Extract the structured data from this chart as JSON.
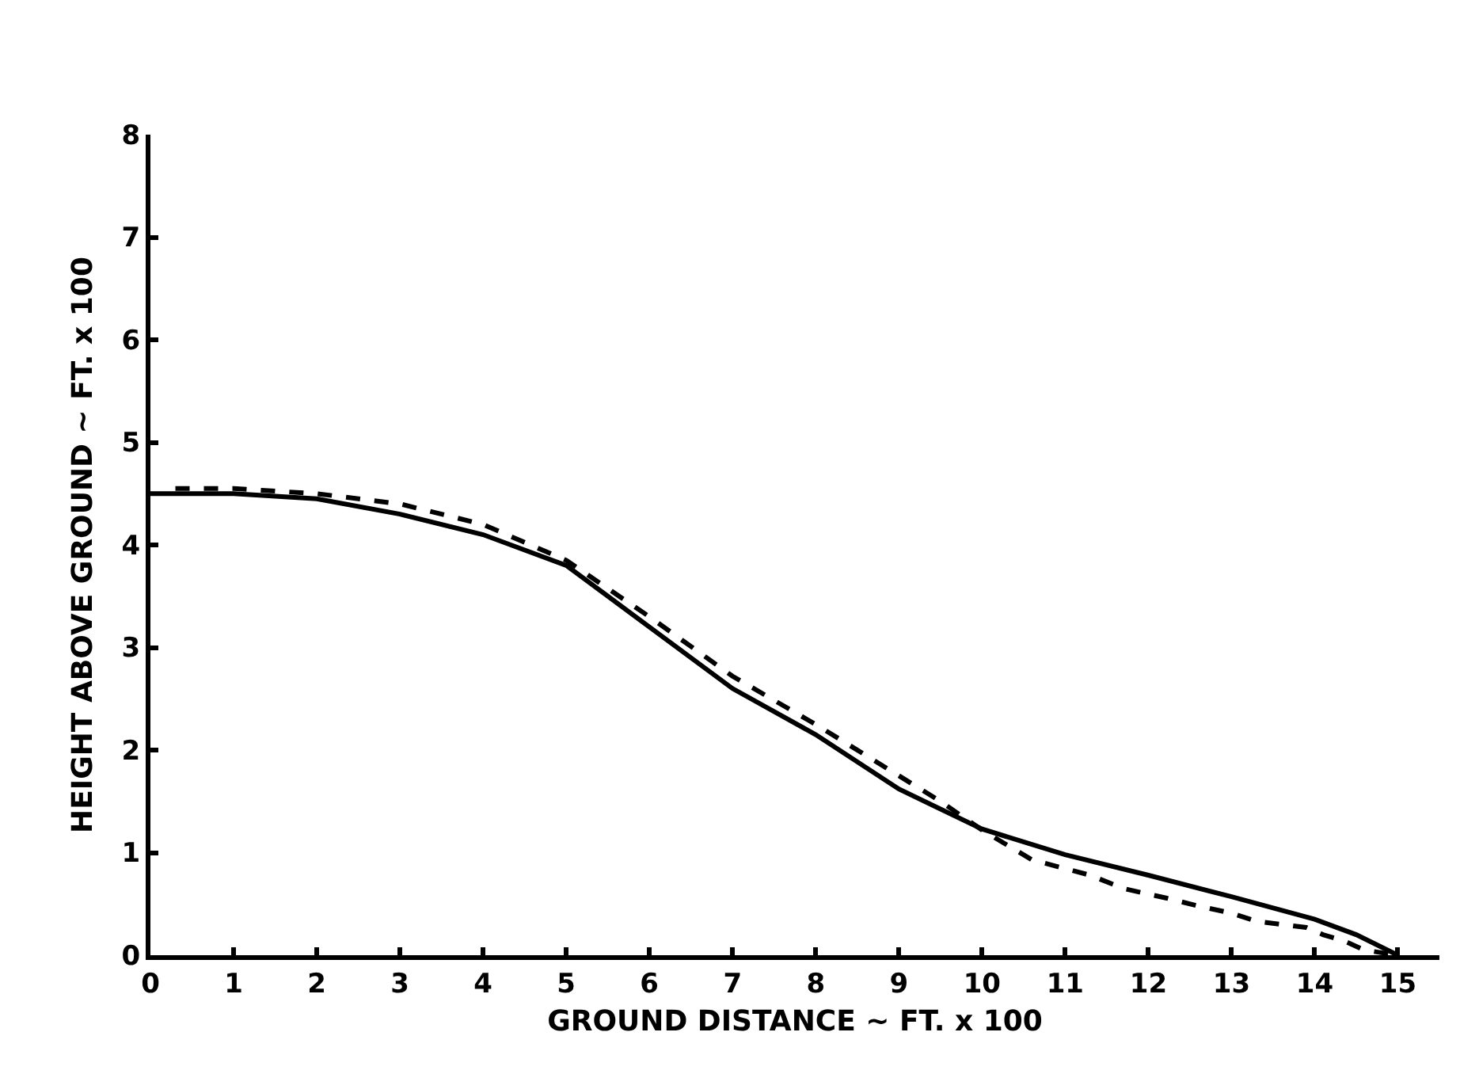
{
  "chart_data": {
    "type": "line",
    "xlabel": "GROUND DISTANCE ~ FT. x 100",
    "ylabel": "HEIGHT ABOVE GROUND ~ FT. x 100",
    "xlim": [
      0,
      15.5
    ],
    "xticks": [
      0,
      1,
      2,
      3,
      4,
      5,
      6,
      7,
      8,
      9,
      10,
      11,
      12,
      13,
      14,
      15
    ],
    "ylim": [
      0,
      8
    ],
    "yticks": [
      0,
      1,
      2,
      3,
      4,
      5,
      6,
      7,
      8
    ],
    "grid": false,
    "marker": "none",
    "series": [
      {
        "color": "#000000",
        "line_style": "solid",
        "x": [
          0,
          1,
          2,
          3,
          4,
          5,
          6,
          7,
          8,
          9,
          10,
          11,
          12,
          13,
          14,
          14.5,
          15
        ],
        "values": [
          4.5,
          4.5,
          4.45,
          4.3,
          4.1,
          3.8,
          3.2,
          2.6,
          2.15,
          1.62,
          1.23,
          0.98,
          0.78,
          0.57,
          0.35,
          0.2,
          0
        ]
      },
      {
        "color": "#000000",
        "line_style": "dashed",
        "x": [
          0.3,
          1,
          2,
          3,
          4,
          5,
          6,
          7,
          8,
          9,
          9.5,
          10,
          10.6,
          11.3,
          11.7,
          12.2,
          12.6,
          13,
          13.3,
          13.6,
          13.9,
          14.1,
          14.35,
          14.6,
          15
        ],
        "values": [
          4.55,
          4.55,
          4.5,
          4.4,
          4.2,
          3.85,
          3.3,
          2.72,
          2.25,
          1.75,
          1.5,
          1.22,
          0.93,
          0.78,
          0.65,
          0.56,
          0.48,
          0.41,
          0.33,
          0.3,
          0.27,
          0.2,
          0.14,
          0.05,
          0
        ]
      }
    ]
  }
}
